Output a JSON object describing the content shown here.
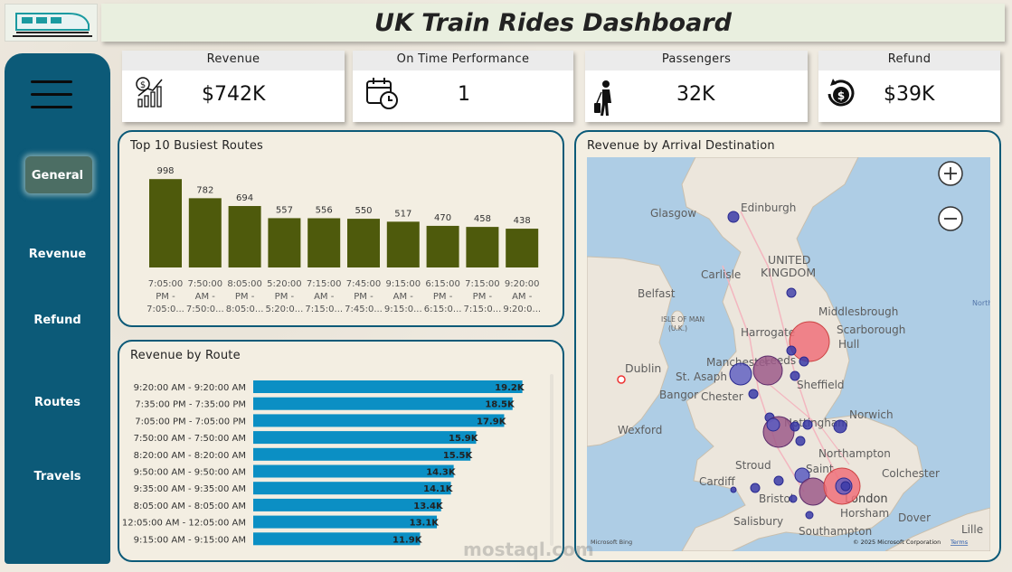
{
  "header": {
    "title": "UK Train Rides Dashboard",
    "logo_icon": "train-icon"
  },
  "sidebar": {
    "menu_icon": "hamburger-menu-icon",
    "items": [
      {
        "label": "General",
        "active": true
      },
      {
        "label": "Revenue"
      },
      {
        "label": "Refund"
      },
      {
        "label": "Routes"
      },
      {
        "label": "Travels"
      }
    ]
  },
  "kpis": [
    {
      "label": "Revenue",
      "value": "$742K",
      "icon": "revenue-growth-icon"
    },
    {
      "label": "On Time Performance",
      "value": "1",
      "icon": "calendar-clock-icon"
    },
    {
      "label": "Passengers",
      "value": "32K",
      "icon": "traveler-icon"
    },
    {
      "label": "Refund",
      "value": "$39K",
      "icon": "refund-coin-icon"
    }
  ],
  "busiest_routes": {
    "title": "Top 10 Busiest Routes",
    "chart_data": {
      "type": "bar",
      "values": [
        998,
        782,
        694,
        557,
        556,
        550,
        517,
        470,
        458,
        438
      ],
      "categories": [
        [
          "7:05:00",
          "PM -",
          "7:05:0..."
        ],
        [
          "7:50:00",
          "AM -",
          "7:50:0..."
        ],
        [
          "8:05:00",
          "PM -",
          "8:05:0..."
        ],
        [
          "5:20:00",
          "PM -",
          "5:20:0..."
        ],
        [
          "7:15:00",
          "AM -",
          "7:15:0..."
        ],
        [
          "7:45:00",
          "PM -",
          "7:45:0..."
        ],
        [
          "9:15:00",
          "AM -",
          "9:15:0..."
        ],
        [
          "6:15:00",
          "PM -",
          "6:15:0..."
        ],
        [
          "7:15:00",
          "PM -",
          "7:15:0..."
        ],
        [
          "9:20:00",
          "AM -",
          "9:20:0..."
        ]
      ],
      "ylim": [
        0,
        1000
      ],
      "color": "#4e5a0c"
    }
  },
  "revenue_by_route": {
    "title": "Revenue by Route",
    "chart_data": {
      "type": "bar",
      "orientation": "horizontal",
      "categories": [
        "9:20:00 AM - 9:20:00 AM",
        "7:35:00 PM - 7:35:00 PM",
        "7:05:00 PM - 7:05:00 PM",
        "7:50:00 AM - 7:50:00 AM",
        "8:20:00 AM - 8:20:00 AM",
        "9:50:00 AM - 9:50:00 AM",
        "9:35:00 AM - 9:35:00 AM",
        "8:05:00 AM - 8:05:00 AM",
        "12:05:00 AM - 12:05:00 AM",
        "9:15:00 AM - 9:15:00 AM"
      ],
      "values": [
        19200,
        18500,
        17900,
        15900,
        15500,
        14300,
        14100,
        13400,
        13100,
        11900
      ],
      "labels": [
        "19.2K",
        "18.5K",
        "17.9K",
        "15.9K",
        "15.5K",
        "14.3K",
        "14.1K",
        "13.4K",
        "13.1K",
        "11.9K"
      ],
      "xlim": [
        0,
        20000
      ],
      "color": "#0b8fc4"
    }
  },
  "map": {
    "title": "Revenue by Arrival Destination",
    "zoom_in_icon": "zoom-in-icon",
    "zoom_out_icon": "zoom-out-icon",
    "places": [
      "Edinburgh",
      "Glasgow",
      "UNITED",
      "KINGDOM",
      "Carlisle",
      "Belfast",
      "ISLE OF MAN",
      "(U.K.)",
      "Middlesbrough",
      "Harrogate",
      "Scarborough",
      "Hull",
      "Manchester",
      "Leeds",
      "Dublin",
      "St. Asaph",
      "Bangor",
      "Chester",
      "Sheffield",
      "Norwich",
      "Wexford",
      "Nottingham",
      "Northampton",
      "Cardiff",
      "Stroud",
      "Saint",
      "Colchester",
      "Bristol",
      "London",
      "Horsham",
      "Salisbury",
      "Southampton",
      "Dover",
      "Lille",
      "North"
    ],
    "attribution_left": "Microsoft Bing",
    "attribution_right": "© 2025 Microsoft Corporation",
    "terms": "Terms",
    "watermark": "mostaql.com",
    "colors": {
      "low": "#3b3ba8",
      "mid": "#9e5a8a",
      "high": "#f0707a"
    }
  }
}
